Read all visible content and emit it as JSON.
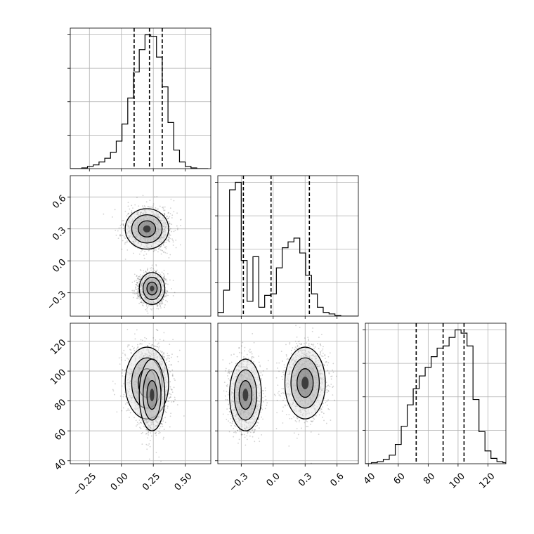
{
  "chart_data": {
    "type": "corner",
    "dimensions": 3,
    "grid": true,
    "axes": [
      {
        "range": [
          -0.4,
          0.7
        ],
        "ticks": [
          -0.25,
          0.0,
          0.25,
          0.5
        ],
        "tick_labels": [
          "−0.25",
          "0.00",
          "0.25",
          "0.50"
        ]
      },
      {
        "range": [
          -0.52,
          0.8
        ],
        "ticks": [
          -0.3,
          0.0,
          0.3,
          0.6
        ],
        "tick_labels": [
          "−0.3",
          "0.0",
          "0.3",
          "0.6"
        ]
      },
      {
        "range": [
          38,
          132
        ],
        "ticks": [
          40,
          60,
          80,
          100,
          120
        ],
        "tick_labels": [
          "40",
          "60",
          "80",
          "100",
          "120"
        ]
      }
    ],
    "hist_edges": [
      [
        -0.4,
        -0.355,
        -0.31,
        -0.265,
        -0.22,
        -0.175,
        -0.13,
        -0.085,
        -0.04,
        0.005,
        0.05,
        0.095,
        0.14,
        0.185,
        0.23,
        0.275,
        0.32,
        0.365,
        0.41,
        0.455,
        0.5,
        0.545,
        0.59,
        0.635,
        0.68
      ],
      [
        -0.52,
        -0.465,
        -0.41,
        -0.355,
        -0.3,
        -0.245,
        -0.19,
        -0.135,
        -0.08,
        -0.025,
        0.03,
        0.085,
        0.14,
        0.195,
        0.25,
        0.305,
        0.36,
        0.415,
        0.47,
        0.525,
        0.58,
        0.635,
        0.69,
        0.745,
        0.8
      ],
      [
        38,
        42,
        46,
        50,
        54,
        58,
        62,
        66,
        70,
        74,
        78,
        82,
        86,
        90,
        94,
        98,
        102,
        106,
        110,
        114,
        118,
        122,
        126,
        130,
        132
      ]
    ],
    "hist_counts": [
      [
        0,
        0,
        1,
        3,
        5,
        9,
        14,
        22,
        37,
        60,
        95,
        130,
        160,
        180,
        178,
        150,
        110,
        62,
        25,
        9,
        3,
        1,
        0,
        0
      ],
      [
        5,
        35,
        170,
        180,
        75,
        20,
        80,
        12,
        28,
        30,
        65,
        92,
        100,
        105,
        85,
        55,
        30,
        12,
        5,
        3,
        1,
        0,
        0,
        0
      ],
      [
        0,
        1,
        2,
        4,
        8,
        18,
        35,
        55,
        70,
        82,
        90,
        100,
        108,
        110,
        118,
        125,
        122,
        110,
        60,
        30,
        12,
        5,
        2,
        1
      ]
    ],
    "quantiles": [
      [
        0.1,
        0.22,
        0.32
      ],
      [
        -0.28,
        -0.02,
        0.34
      ],
      [
        72,
        90,
        104
      ]
    ],
    "clusters": [
      {
        "mean": [
          0.2,
          0.3,
          92
        ],
        "sd": [
          0.085,
          0.095,
          12
        ]
      },
      {
        "mean": [
          0.24,
          -0.26,
          84
        ],
        "sd": [
          0.05,
          0.075,
          12
        ]
      },
      {
        "mean": [
          0.26,
          0.3,
          100
        ],
        "sd": [
          0.06,
          0.08,
          8
        ]
      },
      {
        "mean": [
          0.22,
          -0.26,
          78
        ],
        "sd": [
          0.05,
          0.06,
          8
        ]
      }
    ]
  }
}
